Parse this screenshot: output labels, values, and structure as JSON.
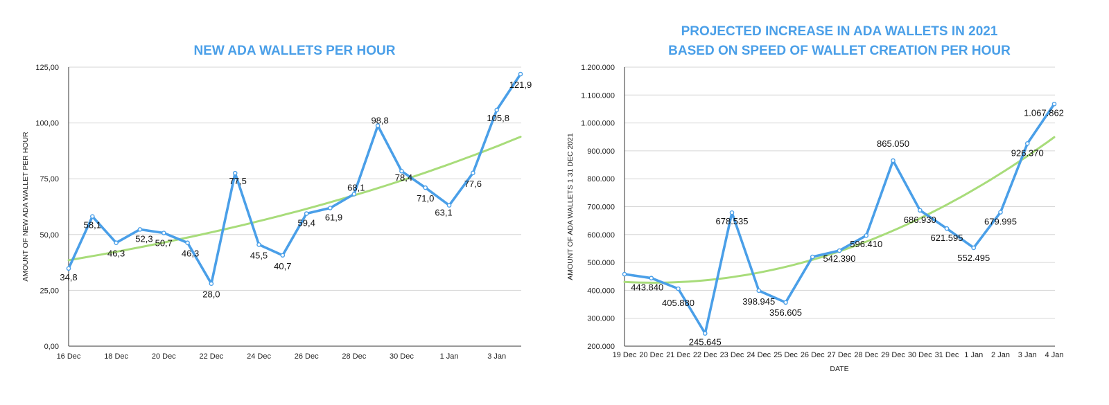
{
  "chart_data": [
    {
      "type": "line",
      "title": [
        "NEW ADA WALLETS PER HOUR"
      ],
      "ylabel": "AMOUNT OF NEW ADA WALLET PER HOUR",
      "xlabel": "",
      "ylim": [
        0,
        125
      ],
      "yticks": [
        "0,00",
        "25,00",
        "50,00",
        "75,00",
        "100,00",
        "125,00"
      ],
      "ytick_values": [
        0,
        25,
        50,
        75,
        100,
        125
      ],
      "x_tick_labels": [
        "16 Dec",
        "18 Dec",
        "20 Dec",
        "22 Dec",
        "24 Dec",
        "26 Dec",
        "28 Dec",
        "30 Dec",
        "1 Jan",
        "3 Jan"
      ],
      "x_tick_index": [
        0,
        2,
        4,
        6,
        8,
        10,
        12,
        14,
        16,
        18
      ],
      "categories": [
        "16 Dec",
        "17 Dec",
        "18 Dec",
        "19 Dec",
        "20 Dec",
        "21 Dec",
        "22 Dec",
        "23 Dec",
        "24 Dec",
        "25 Dec",
        "26 Dec",
        "27 Dec",
        "28 Dec",
        "29 Dec",
        "30 Dec",
        "31 Dec",
        "1 Jan",
        "2 Jan",
        "3 Jan",
        "4 Jan"
      ],
      "series": [
        {
          "name": "New ADA wallets per hour",
          "color": "#4A9FE8",
          "values": [
            34.8,
            58.1,
            46.3,
            52.3,
            50.7,
            46.3,
            28.0,
            77.5,
            45.5,
            40.7,
            59.4,
            61.9,
            68.1,
            98.8,
            78.4,
            71.0,
            63.1,
            77.6,
            105.8,
            121.9
          ],
          "labels": [
            "34,8",
            "58,1",
            "46,3",
            "52,3",
            "50,7",
            "46,3",
            "28,0",
            "77,5",
            "45,5",
            "40,7",
            "59,4",
            "61,9",
            "68,1",
            "98,8",
            "78,4",
            "71,0",
            "63,1",
            "77,6",
            "105,8",
            "121,9"
          ]
        },
        {
          "name": "Trend",
          "color": "#A8DC7A",
          "trend": "exponential",
          "start": 38.5,
          "end": 93.8
        }
      ]
    },
    {
      "type": "line",
      "title": [
        "PROJECTED INCREASE IN ADA WALLETS IN 2021",
        "BASED ON SPEED OF WALLET CREATION PER HOUR"
      ],
      "ylabel": "AMOUNT OF ADA WALLETS 1 31 DEC 2021",
      "xlabel": "DATE",
      "ylim": [
        200000,
        1200000
      ],
      "yticks": [
        "200.000",
        "300.000",
        "400.000",
        "500.000",
        "600.000",
        "700.000",
        "800.000",
        "900.000",
        "1.000.000",
        "1.100.000",
        "1.200.000"
      ],
      "ytick_values": [
        200000,
        300000,
        400000,
        500000,
        600000,
        700000,
        800000,
        900000,
        1000000,
        1100000,
        1200000
      ],
      "x_tick_labels": [
        "19 Dec",
        "20 Dec",
        "21 Dec",
        "22 Dec",
        "23 Dec",
        "24 Dec",
        "25 Dec",
        "26 Dec",
        "27 Dec",
        "28 Dec",
        "29 Dec",
        "30 Dec",
        "31 Dec",
        "1 Jan",
        "2 Jan",
        "3 Jan",
        "4 Jan"
      ],
      "x_tick_index": [
        0,
        1,
        2,
        3,
        4,
        5,
        6,
        7,
        8,
        9,
        10,
        11,
        12,
        13,
        14,
        15,
        16
      ],
      "categories": [
        "19 Dec",
        "20 Dec",
        "21 Dec",
        "22 Dec",
        "23 Dec",
        "24 Dec",
        "25 Dec",
        "26 Dec",
        "27 Dec",
        "28 Dec",
        "29 Dec",
        "30 Dec",
        "31 Dec",
        "1 Jan",
        "2 Jan",
        "3 Jan",
        "4 Jan"
      ],
      "series": [
        {
          "name": "Projected ADA wallets",
          "color": "#4A9FE8",
          "values": [
            458000,
            443840,
            405880,
            245645,
            678535,
            398945,
            356605,
            520000,
            542390,
            596410,
            865050,
            686930,
            621595,
            552495,
            679995,
            926370,
            1067862
          ],
          "labels": [
            "",
            "443.840",
            "405.880",
            "245.645",
            "678.535",
            "398.945",
            "356.605",
            "",
            "542.390",
            "596.410",
            "865.050",
            "686.930",
            "621.595",
            "552.495",
            "679.995",
            "926.370",
            "1.067.862"
          ]
        },
        {
          "name": "Trend",
          "color": "#A8DC7A",
          "trend": "polynomial",
          "poly": [
            430000,
            -5000,
            2340
          ]
        }
      ]
    }
  ]
}
